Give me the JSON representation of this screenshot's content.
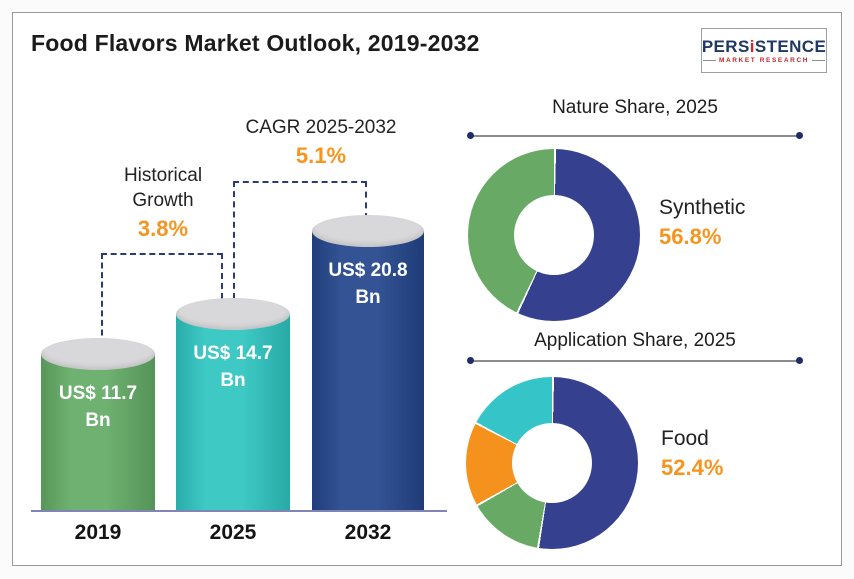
{
  "header": {
    "title": "Food Flavors Market Outlook, 2019-2032",
    "logo": {
      "part1": "PERS",
      "part2": "i",
      "part3": "STENCE",
      "tagline": "MARKET RESEARCH"
    }
  },
  "theme": {
    "accent_orange": "#f7941d",
    "dashed_navy": "#2b3a7c",
    "baseline": "#8185b5",
    "cylinder_top_gray": "#d8d8da",
    "logo_navy": "#1f3864",
    "logo_red": "#c0272d"
  },
  "chart_data": [
    {
      "type": "bar",
      "title": "Food Flavors Market Outlook, 2019-2032",
      "unit": "US$ Bn",
      "categories": [
        "2019",
        "2025",
        "2032"
      ],
      "values": [
        11.7,
        14.7,
        20.8
      ],
      "bars": [
        {
          "year": "2019",
          "value": 11.7,
          "label_line1": "US$ 11.7",
          "label_line2": "Bn",
          "color": "#63ab65"
        },
        {
          "year": "2025",
          "value": 14.7,
          "label_line1": "US$ 14.7",
          "label_line2": "Bn",
          "color": "#2fc5c1"
        },
        {
          "year": "2032",
          "value": 20.8,
          "label_line1": "US$ 20.8",
          "label_line2": "Bn",
          "color": "#24468c"
        }
      ],
      "annotations": [
        {
          "label_line1": "Historical",
          "label_line2": "Growth",
          "value": "3.8%"
        },
        {
          "label": "CAGR 2025-2032",
          "value": "5.1%"
        }
      ]
    },
    {
      "type": "pie",
      "donut": true,
      "title": "Nature Share, 2025",
      "segments": [
        {
          "label": "Synthetic",
          "value": 56.8,
          "color": "#35418f"
        },
        {
          "label": "unlabeled",
          "value": 43.2,
          "color": "#68a965"
        }
      ],
      "callout": {
        "label": "Synthetic",
        "value": "56.8%"
      }
    },
    {
      "type": "pie",
      "donut": true,
      "title": "Application Share, 2025",
      "segments": [
        {
          "label": "Food",
          "value": 52.4,
          "color": "#35418f"
        },
        {
          "label": "unlabeled",
          "value": 14.2,
          "color": "#68a965"
        },
        {
          "label": "unlabeled",
          "value": 15.9,
          "color": "#f5921d"
        },
        {
          "label": "unlabeled",
          "value": 17.5,
          "color": "#35c4c8"
        }
      ],
      "callout": {
        "label": "Food",
        "value": "52.4%"
      }
    }
  ]
}
